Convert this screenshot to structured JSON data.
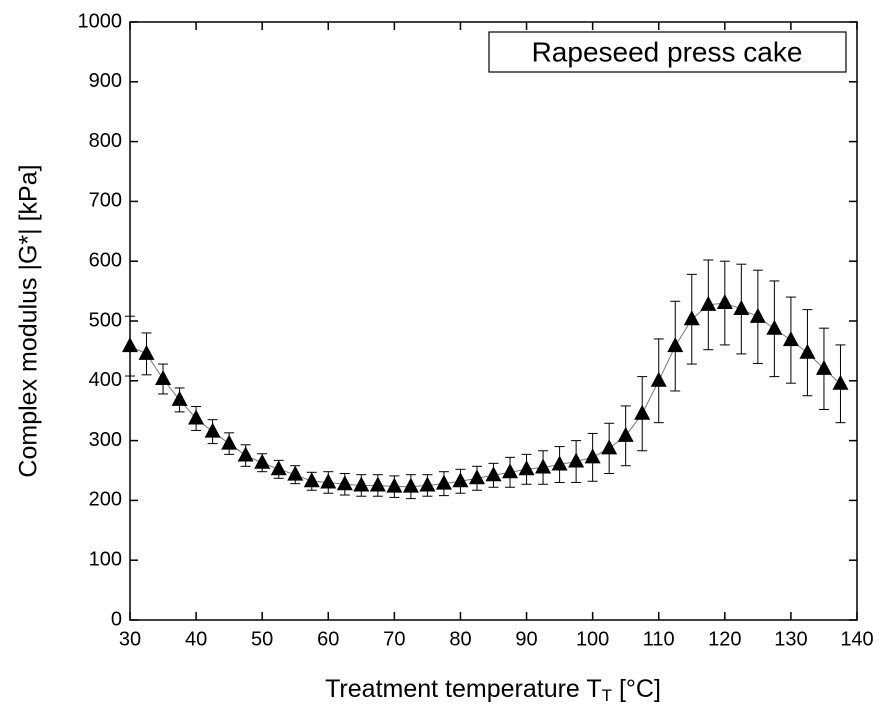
{
  "chart_data": {
    "type": "scatter",
    "annotation": "Rapeseed press cake",
    "x_label": {
      "text": "Treatment temperature T",
      "subscript": "T",
      "suffix": " [°C]"
    },
    "y_label": "Complex modulus |G*| [kPa]",
    "x": [
      30,
      32.5,
      35,
      37.5,
      40,
      42.5,
      45,
      47.5,
      50,
      52.5,
      55,
      57.5,
      60,
      62.5,
      65,
      67.5,
      70,
      72.5,
      75,
      77.5,
      80,
      82.5,
      85,
      87.5,
      90,
      92.5,
      95,
      97.5,
      100,
      102.5,
      105,
      107.5,
      110,
      112.5,
      115,
      117.5,
      120,
      122.5,
      125,
      127.5,
      130,
      132.5,
      135,
      137.5
    ],
    "series": [
      {
        "color": "#000000",
        "values": [
          458,
          445,
          403,
          368,
          337,
          315,
          295,
          275,
          263,
          252,
          243,
          232,
          230,
          227,
          225,
          225,
          223,
          223,
          225,
          228,
          232,
          237,
          242,
          247,
          252,
          255,
          260,
          265,
          272,
          287,
          308,
          345,
          400,
          458,
          503,
          527,
          530,
          520,
          507,
          487,
          468,
          447,
          420,
          395
        ],
        "errors": [
          50,
          35,
          25,
          20,
          20,
          20,
          18,
          18,
          15,
          15,
          15,
          15,
          18,
          18,
          18,
          18,
          18,
          20,
          18,
          20,
          20,
          20,
          20,
          25,
          25,
          28,
          30,
          35,
          40,
          42,
          50,
          62,
          70,
          75,
          75,
          75,
          70,
          75,
          78,
          80,
          72,
          72,
          68,
          65
        ]
      }
    ],
    "xlim": [
      30,
      140
    ],
    "ylim": [
      0,
      1000
    ],
    "xticks": [
      30,
      40,
      50,
      60,
      70,
      80,
      90,
      100,
      110,
      120,
      130,
      140
    ],
    "yticks": [
      0,
      100,
      200,
      300,
      400,
      500,
      600,
      700,
      800,
      900,
      1000
    ]
  }
}
